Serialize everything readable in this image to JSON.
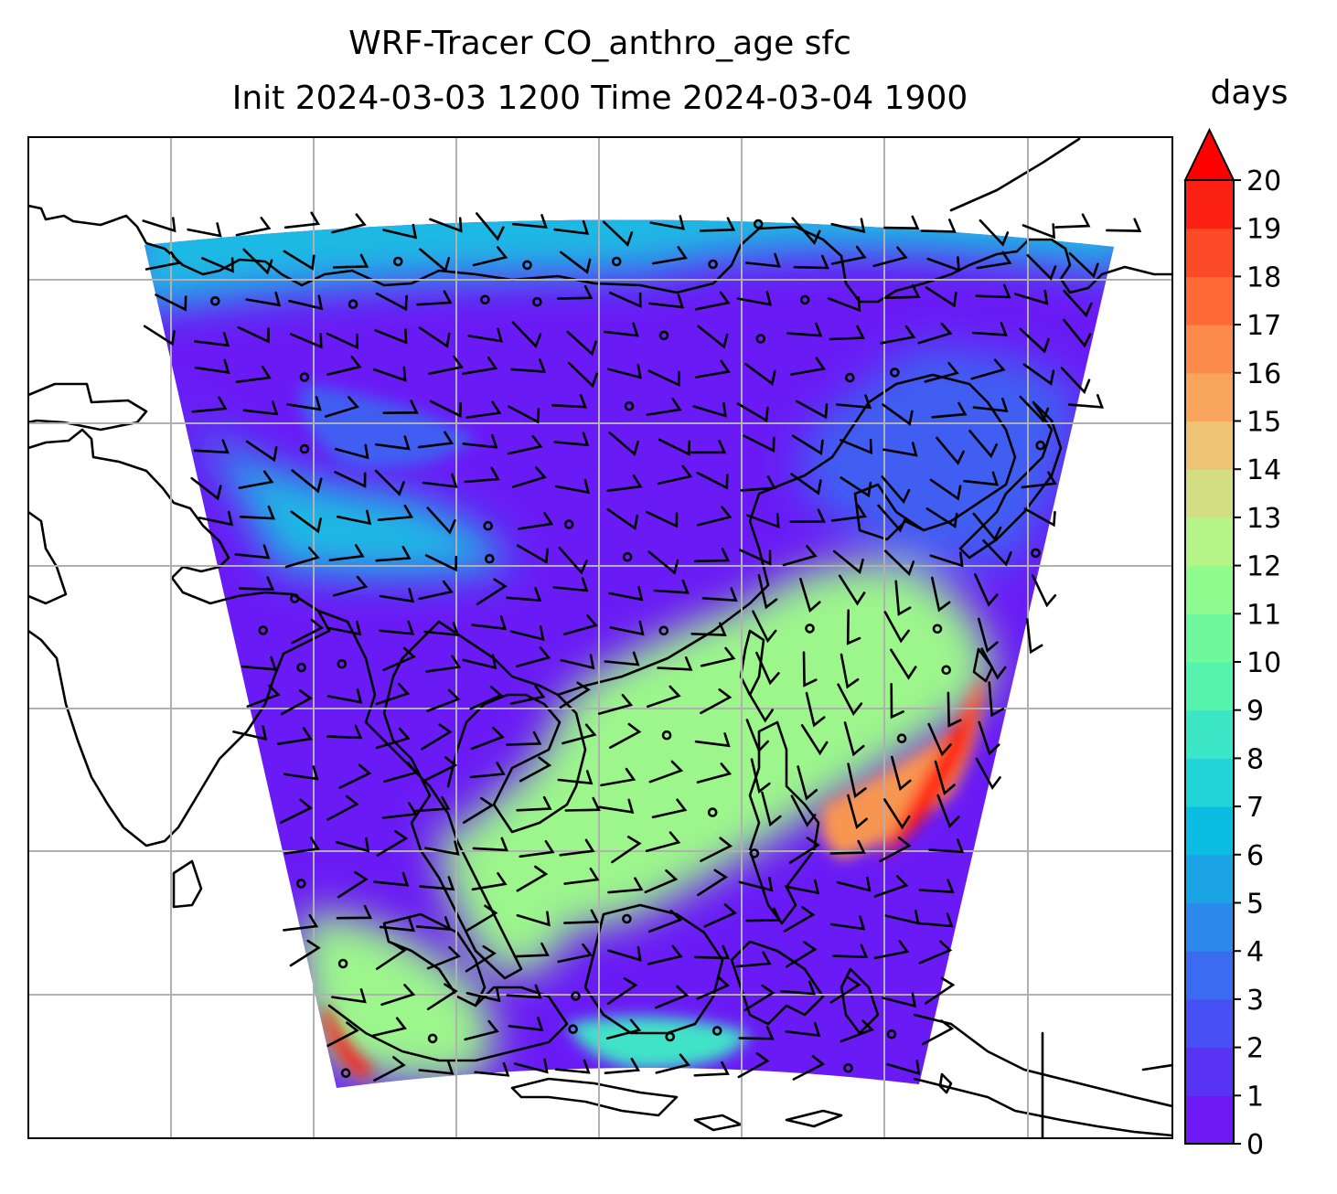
{
  "title": {
    "line1": "WRF-Tracer CO_anthro_age sfc",
    "line2": "Init 2024-03-03 1200 Time 2024-03-04 1900"
  },
  "colorbar": {
    "label": "days",
    "ticks": [
      "0",
      "1",
      "2",
      "3",
      "4",
      "5",
      "6",
      "7",
      "8",
      "9",
      "10",
      "11",
      "12",
      "13",
      "14",
      "15",
      "16",
      "17",
      "18",
      "19",
      "20"
    ],
    "extend": "max",
    "colors": [
      "#6f1af5",
      "#5933f3",
      "#4650f5",
      "#3a6bf0",
      "#2c88ea",
      "#1aa3e5",
      "#0cbde3",
      "#22d4d8",
      "#3ae6c6",
      "#55f3ad",
      "#70f99c",
      "#8ffb8e",
      "#b4f489",
      "#d3de84",
      "#efc374",
      "#f8a45d",
      "#fb8a4c",
      "#fd6a38",
      "#fd4a26",
      "#fc2014",
      "#ff0000"
    ]
  },
  "map": {
    "field_palette": {
      "low": "#6a1bf5",
      "low2": "#3f5ff2",
      "mid": "#1fb9e4",
      "mid2": "#40e3c8",
      "high": "#9cf68c",
      "hot": "#f89651",
      "max": "#ff1d0c"
    },
    "coast_color": "#000000",
    "grid_color": "#b0b0b0"
  }
}
